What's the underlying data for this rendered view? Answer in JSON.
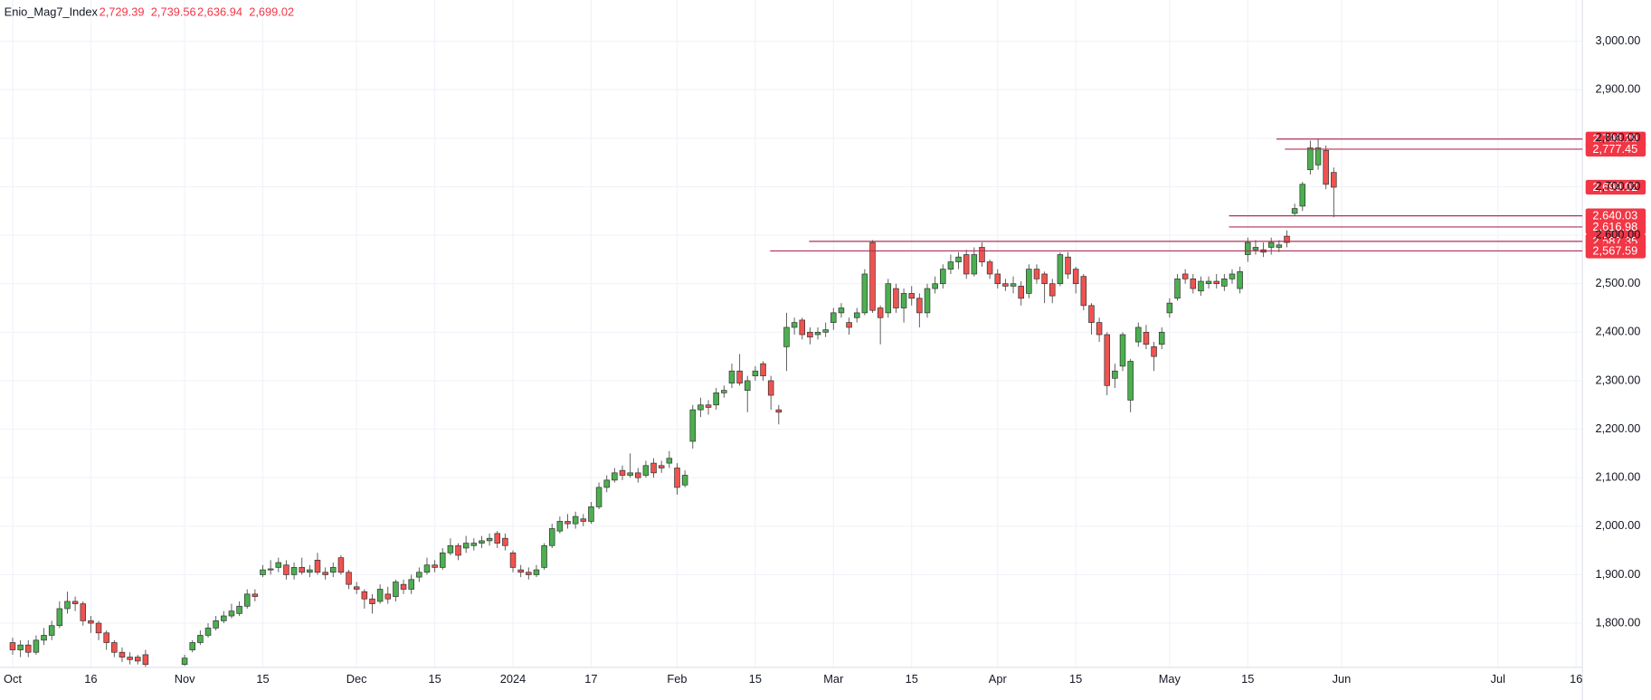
{
  "chart_data": {
    "type": "candlestick",
    "grid": true,
    "series": [
      {
        "name": "Enio_Mag7_Index",
        "up_color": "#4caf50",
        "down_color": "#ef5350",
        "open": [
          1760,
          1745,
          1755,
          1740,
          1765,
          1775,
          1795,
          1830,
          1845,
          1840,
          1805,
          1800,
          1780,
          1760,
          1740,
          1730,
          1730,
          1735,
          null,
          null,
          null,
          null,
          1715,
          1745,
          1760,
          1775,
          1790,
          1805,
          1815,
          1820,
          1835,
          1860,
          1900,
          1910,
          1915,
          1920,
          1900,
          1915,
          1905,
          1930,
          1905,
          1905,
          1935,
          1905,
          1875,
          1865,
          1850,
          1845,
          1860,
          1855,
          1880,
          1870,
          1895,
          1905,
          1920,
          1915,
          1945,
          1960,
          1955,
          1960,
          1965,
          1970,
          1985,
          1975,
          1945,
          1910,
          1905,
          1900,
          1915,
          1960,
          1990,
          2010,
          2005,
          2015,
          2010,
          2040,
          2080,
          2095,
          2115,
          2105,
          2110,
          2105,
          2130,
          2125,
          2130,
          2120,
          2085,
          2175,
          2240,
          2250,
          2250,
          2275,
          2295,
          2320,
          2280,
          2310,
          2335,
          2300,
          2240,
          2370,
          2410,
          2425,
          2400,
          2395,
          2400,
          2420,
          2440,
          2420,
          2430,
          2440,
          2585,
          2450,
          2440,
          2490,
          2450,
          2480,
          2470,
          2440,
          2490,
          2500,
          2530,
          2545,
          2560,
          2520,
          2575,
          2545,
          2520,
          2500,
          2495,
          2495,
          2480,
          2530,
          2520,
          2500,
          2500,
          2555,
          2530,
          2515,
          2455,
          2420,
          2395,
          2305,
          2330,
          2260,
          2380,
          2400,
          2370,
          2375,
          2440,
          2470,
          2520,
          2510,
          2485,
          2500,
          2505,
          2495,
          2510,
          2490,
          2560,
          2570,
          2570,
          2575,
          2575,
          2598,
          2645,
          2660,
          2735,
          2745,
          2775,
          2729.39,
          null,
          null,
          null,
          null,
          null,
          null,
          null,
          null,
          null,
          null,
          null,
          null,
          null,
          null,
          null,
          null,
          null,
          null,
          null,
          null,
          null,
          null,
          null,
          null,
          null,
          null,
          null,
          null,
          null,
          null,
          null
        ],
        "high": [
          1770,
          1765,
          1765,
          1775,
          1790,
          1805,
          1845,
          1865,
          1855,
          1845,
          1815,
          1805,
          1785,
          1765,
          1750,
          1740,
          1735,
          1745,
          null,
          null,
          null,
          null,
          1735,
          1765,
          1785,
          1800,
          1815,
          1825,
          1840,
          1845,
          1870,
          1870,
          1920,
          1930,
          1935,
          1930,
          1925,
          1935,
          1920,
          1945,
          1915,
          1925,
          1940,
          1910,
          1885,
          1870,
          1860,
          1880,
          1875,
          1890,
          1890,
          1900,
          1915,
          1935,
          1930,
          1955,
          1975,
          1965,
          1980,
          1975,
          1980,
          1985,
          1990,
          1985,
          1950,
          1920,
          1915,
          1920,
          1965,
          2005,
          2020,
          2025,
          2030,
          2025,
          2050,
          2090,
          2105,
          2120,
          2125,
          2150,
          2120,
          2135,
          2140,
          2135,
          2155,
          2130,
          2115,
          2250,
          2265,
          2260,
          2285,
          2290,
          2335,
          2355,
          2310,
          2330,
          2340,
          2310,
          2250,
          2440,
          2430,
          2430,
          2410,
          2410,
          2420,
          2450,
          2460,
          2430,
          2450,
          2530,
          2590,
          2455,
          2510,
          2500,
          2490,
          2495,
          2480,
          2500,
          2515,
          2540,
          2560,
          2565,
          2570,
          2575,
          2585,
          2550,
          2530,
          2510,
          2515,
          2505,
          2540,
          2540,
          2525,
          2510,
          2565,
          2565,
          2535,
          2520,
          2460,
          2430,
          2400,
          2335,
          2400,
          2345,
          2420,
          2415,
          2380,
          2410,
          2470,
          2520,
          2530,
          2520,
          2515,
          2515,
          2520,
          2520,
          2530,
          2535,
          2595,
          2590,
          2585,
          2595,
          2590,
          2610,
          2665,
          2710,
          2795,
          2798,
          2785,
          2739.56,
          null,
          null,
          null,
          null,
          null,
          null,
          null,
          null,
          null,
          null,
          null,
          null,
          null,
          null,
          null,
          null,
          null,
          null,
          null,
          null,
          null,
          null,
          null,
          null,
          null,
          null,
          null,
          null,
          null,
          null,
          null
        ],
        "low": [
          1735,
          1730,
          1730,
          1735,
          1755,
          1765,
          1790,
          1820,
          1825,
          1795,
          1780,
          1765,
          1745,
          1730,
          1720,
          1715,
          1715,
          1710,
          null,
          null,
          null,
          null,
          1712,
          1740,
          1755,
          1770,
          1785,
          1800,
          1810,
          1815,
          1830,
          1845,
          1895,
          1900,
          1905,
          1890,
          1890,
          1900,
          1895,
          1900,
          1890,
          1895,
          1900,
          1870,
          1860,
          1830,
          1820,
          1840,
          1840,
          1845,
          1860,
          1860,
          1885,
          1900,
          1905,
          1910,
          1940,
          1930,
          1945,
          1950,
          1955,
          1960,
          1955,
          1950,
          1905,
          1895,
          1890,
          1895,
          1910,
          1955,
          1985,
          1995,
          1995,
          2000,
          2005,
          2035,
          2070,
          2090,
          2095,
          2100,
          2090,
          2100,
          2100,
          2110,
          2120,
          2065,
          2080,
          2160,
          2225,
          2230,
          2240,
          2265,
          2285,
          2290,
          2235,
          2300,
          2300,
          2240,
          2210,
          2320,
          2395,
          2385,
          2375,
          2385,
          2390,
          2405,
          2430,
          2395,
          2420,
          2435,
          2440,
          2375,
          2430,
          2440,
          2420,
          2455,
          2410,
          2430,
          2480,
          2490,
          2520,
          2530,
          2510,
          2515,
          2535,
          2510,
          2490,
          2485,
          2480,
          2455,
          2470,
          2500,
          2460,
          2460,
          2495,
          2510,
          2480,
          2445,
          2395,
          2380,
          2270,
          2285,
          2320,
          2235,
          2370,
          2365,
          2320,
          2365,
          2430,
          2465,
          2500,
          2480,
          2475,
          2490,
          2490,
          2485,
          2500,
          2480,
          2545,
          2560,
          2555,
          2560,
          2565,
          2575,
          2640,
          2650,
          2725,
          2735,
          2695,
          2636.94,
          null,
          null,
          null,
          null,
          null,
          null,
          null,
          null,
          null,
          null,
          null,
          null,
          null,
          null,
          null,
          null,
          null,
          null,
          null,
          null,
          null,
          null,
          null,
          null,
          null,
          null,
          null,
          null,
          null,
          null,
          null
        ],
        "close": [
          1745,
          1755,
          1740,
          1765,
          1775,
          1795,
          1830,
          1845,
          1840,
          1805,
          1800,
          1780,
          1760,
          1740,
          1730,
          1725,
          1722,
          1715,
          null,
          null,
          null,
          null,
          1728,
          1760,
          1775,
          1790,
          1805,
          1815,
          1825,
          1835,
          1860,
          1855,
          1910,
          1912,
          1925,
          1900,
          1915,
          1905,
          1910,
          1905,
          1900,
          1915,
          1905,
          1880,
          1870,
          1850,
          1840,
          1870,
          1850,
          1885,
          1870,
          1890,
          1905,
          1920,
          1915,
          1945,
          1960,
          1940,
          1965,
          1965,
          1970,
          1975,
          1965,
          1960,
          1915,
          1905,
          1900,
          1910,
          1960,
          1995,
          2010,
          2005,
          2020,
          2010,
          2040,
          2080,
          2095,
          2110,
          2105,
          2110,
          2100,
          2125,
          2110,
          2120,
          2140,
          2080,
          2105,
          2240,
          2250,
          2245,
          2275,
          2280,
          2320,
          2295,
          2300,
          2320,
          2310,
          2270,
          2235,
          2410,
          2420,
          2395,
          2390,
          2400,
          2405,
          2440,
          2450,
          2410,
          2440,
          2520,
          2445,
          2430,
          2500,
          2450,
          2480,
          2470,
          2440,
          2490,
          2500,
          2530,
          2545,
          2555,
          2520,
          2560,
          2545,
          2520,
          2500,
          2495,
          2500,
          2470,
          2530,
          2510,
          2500,
          2475,
          2560,
          2520,
          2500,
          2455,
          2420,
          2395,
          2290,
          2320,
          2395,
          2340,
          2410,
          2375,
          2350,
          2400,
          2460,
          2510,
          2510,
          2490,
          2505,
          2505,
          2500,
          2510,
          2520,
          2525,
          2585,
          2575,
          2565,
          2585,
          2580,
          2585,
          2655,
          2705,
          2780,
          2780,
          2705,
          2699.02,
          null,
          null,
          null,
          null,
          null,
          null,
          null,
          null,
          null,
          null,
          null,
          null,
          null,
          null,
          null,
          null,
          null,
          null,
          null,
          null,
          null,
          null,
          null,
          null,
          null,
          null,
          null,
          null,
          null,
          null,
          null
        ]
      }
    ],
    "categories": [
      "Oct",
      null,
      null,
      null,
      null,
      null,
      null,
      null,
      null,
      null,
      "16",
      null,
      null,
      null,
      null,
      null,
      null,
      null,
      null,
      null,
      null,
      null,
      "Nov",
      null,
      null,
      null,
      null,
      null,
      null,
      null,
      null,
      null,
      "15",
      null,
      null,
      null,
      null,
      null,
      null,
      null,
      null,
      null,
      null,
      null,
      "Dec",
      null,
      null,
      null,
      null,
      null,
      null,
      null,
      null,
      null,
      "15",
      null,
      null,
      null,
      null,
      null,
      null,
      null,
      null,
      null,
      "2024",
      null,
      null,
      null,
      null,
      null,
      null,
      null,
      null,
      null,
      "17",
      null,
      null,
      null,
      null,
      null,
      null,
      null,
      null,
      null,
      null,
      "Feb",
      null,
      null,
      null,
      null,
      null,
      null,
      null,
      null,
      null,
      "15",
      null,
      null,
      null,
      null,
      null,
      null,
      null,
      null,
      null,
      "Mar",
      null,
      null,
      null,
      null,
      null,
      null,
      null,
      null,
      null,
      "15",
      null,
      null,
      null,
      null,
      null,
      null,
      null,
      null,
      null,
      null,
      "Apr",
      null,
      null,
      null,
      null,
      null,
      null,
      null,
      null,
      null,
      "15",
      null,
      null,
      null,
      null,
      null,
      null,
      null,
      null,
      null,
      null,
      null,
      "May",
      null,
      null,
      null,
      null,
      null,
      null,
      null,
      null,
      null,
      "15",
      null,
      null,
      null,
      null,
      null,
      null,
      null,
      null,
      null,
      null,
      null,
      "Jun",
      null,
      null,
      null,
      null,
      null,
      null,
      null,
      null,
      null,
      null,
      null,
      null,
      null,
      null,
      null,
      null,
      null,
      null,
      null,
      "Jul",
      null,
      null,
      null,
      null,
      null,
      null,
      null,
      null,
      null,
      "16"
    ],
    "ylim": [
      1709,
      3085
    ],
    "yticks": [
      {
        "value": 1800,
        "label": "1,800.00"
      },
      {
        "value": 1900,
        "label": "1,900.00"
      },
      {
        "value": 2000,
        "label": "2,000.00"
      },
      {
        "value": 2100,
        "label": "2,100.00"
      },
      {
        "value": 2200,
        "label": "2,200.00"
      },
      {
        "value": 2300,
        "label": "2,300.00"
      },
      {
        "value": 2400,
        "label": "2,400.00"
      },
      {
        "value": 2500,
        "label": "2,500.00"
      },
      {
        "value": 2600,
        "label": "2,600.00"
      },
      {
        "value": 2700,
        "label": "2,700.00"
      },
      {
        "value": 2800,
        "label": "2,800.00"
      },
      {
        "value": 2900,
        "label": "2,900.00"
      },
      {
        "value": 3000,
        "label": "3,000.00"
      }
    ],
    "header_values": [
      {
        "value": 2729.39,
        "label": "2,729.39"
      },
      {
        "value": 2739.56,
        "label": "2,739.56"
      },
      {
        "value": 2636.94,
        "label": "2,636.94"
      },
      {
        "value": 2699.02,
        "label": "2,699.02"
      }
    ],
    "levels": [
      {
        "value": 2798.29,
        "label": "2,798.29"
      },
      {
        "value": 2777.45,
        "label": "2,777.45"
      },
      {
        "value": 2640.03,
        "label": "2,640.03"
      },
      {
        "value": 2616.98,
        "label": "2,616.98"
      },
      {
        "value": 2587.35,
        "label": "2,587.35"
      },
      {
        "value": 2567.59,
        "label": "2,567.59"
      }
    ],
    "level_color": "#b0305a",
    "badge_color": "#f23645",
    "last_price": {
      "value": 2699.02,
      "label": "2,699.02"
    }
  }
}
